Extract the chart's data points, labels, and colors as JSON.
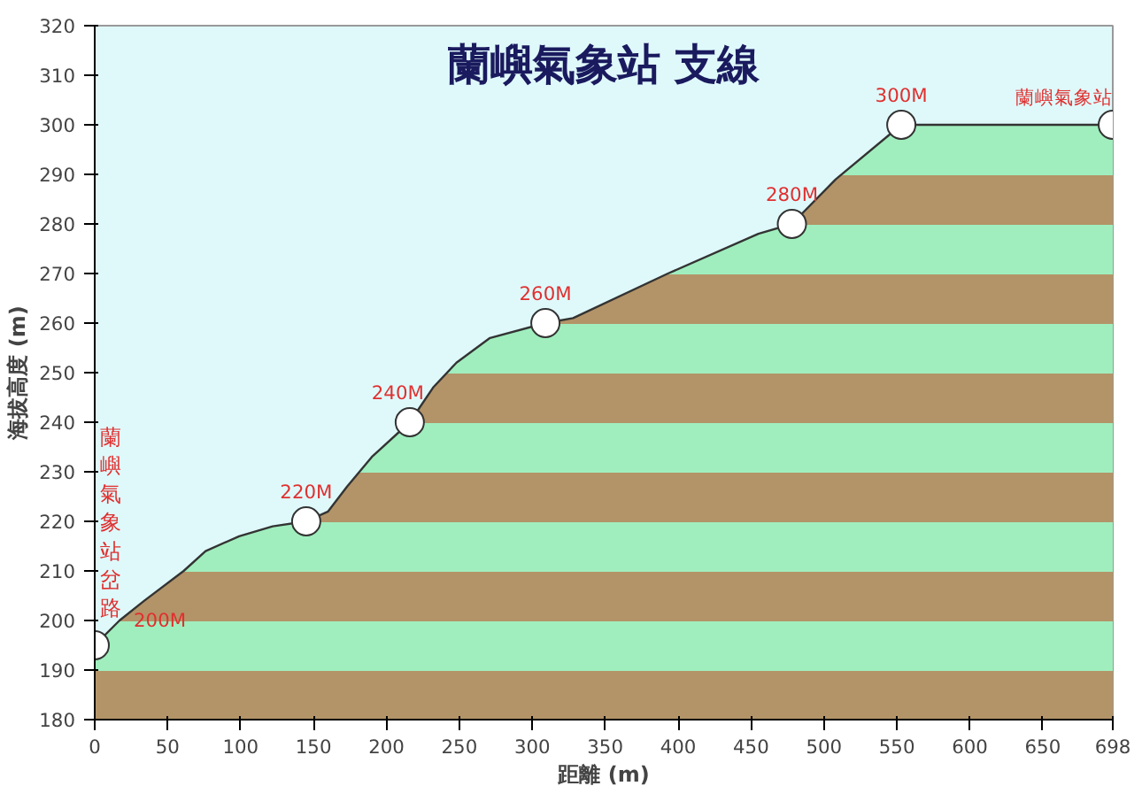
{
  "chart_data": {
    "type": "area",
    "title": "蘭嶼氣象站 支線",
    "xlabel": "距離 (m)",
    "ylabel": "海拔高度 (m)",
    "xlim": [
      0,
      698
    ],
    "ylim": [
      180,
      320
    ],
    "xticks": [
      0,
      50,
      100,
      150,
      200,
      250,
      300,
      350,
      400,
      450,
      500,
      550,
      600,
      650,
      698
    ],
    "yticks": [
      180,
      190,
      200,
      210,
      220,
      230,
      240,
      250,
      260,
      270,
      280,
      290,
      300,
      310,
      320
    ],
    "grid": false,
    "series": [
      {
        "color": "#b39468",
        "x": [
          0,
          17,
          34,
          61,
          76,
          99,
          122,
          145,
          160,
          173,
          190,
          216,
          232,
          248,
          271,
          309,
          328,
          393,
          455,
          478,
          508,
          553,
          698
        ],
        "values": [
          195,
          200,
          204,
          210,
          214,
          217,
          219,
          220,
          222,
          227,
          233,
          240,
          247,
          252,
          257,
          260,
          261,
          270,
          278,
          280,
          289,
          300,
          300
        ]
      },
      {
        "type": "scatter",
        "marker": "circle",
        "color": "#333333",
        "x": [
          0,
          145,
          216,
          309,
          478,
          553,
          698
        ],
        "values": [
          195,
          220,
          240,
          260,
          280,
          300,
          300
        ]
      }
    ],
    "annotations": [
      {
        "text": "蘭嶼氣象站岔路",
        "x": 0,
        "y": 195
      },
      {
        "text": "200M",
        "x": 17,
        "y": 200
      },
      {
        "text": "220M",
        "x": 145,
        "y": 220
      },
      {
        "text": "240M",
        "x": 216,
        "y": 240
      },
      {
        "text": "260M",
        "x": 309,
        "y": 260
      },
      {
        "text": "280M",
        "x": 478,
        "y": 280
      },
      {
        "text": "300M",
        "x": 553,
        "y": 300
      },
      {
        "text": "蘭嶼氣象站",
        "x": 698,
        "y": 300
      }
    ]
  }
}
